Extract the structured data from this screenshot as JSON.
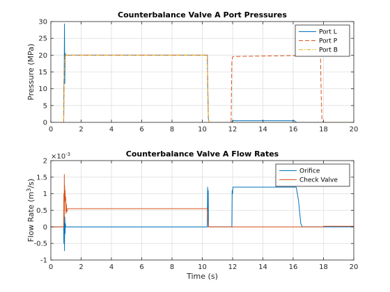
{
  "chart_data": [
    {
      "type": "line",
      "title": "Counterbalance Valve A Port Pressures",
      "xlabel": "",
      "ylabel": "Pressure (MPa)",
      "xlim": [
        0,
        20
      ],
      "ylim": [
        0,
        30
      ],
      "xticks": [
        "0",
        "2",
        "4",
        "6",
        "8",
        "10",
        "12",
        "14",
        "16",
        "18",
        "20"
      ],
      "yticks": [
        "0",
        "5",
        "10",
        "15",
        "20",
        "25",
        "30"
      ],
      "grid": true,
      "legend_position": "top-right",
      "series": [
        {
          "name": "Port L",
          "color": "#0072BD",
          "style": "solid",
          "x": [
            0,
            0.85,
            0.86,
            0.88,
            0.9,
            0.92,
            0.94,
            0.96,
            0.98,
            1.0,
            1.05,
            1.2,
            10.33,
            10.36,
            10.4,
            10.45,
            10.5,
            11.95,
            12.0,
            12.05,
            16.1,
            16.15,
            16.3,
            20
          ],
          "y": [
            0,
            0,
            11,
            14,
            29.3,
            11.5,
            20.5,
            19.8,
            20.3,
            20.0,
            20.0,
            20.0,
            20.0,
            10,
            1,
            0,
            0,
            0,
            0.5,
            0.5,
            0.5,
            0.1,
            0,
            0
          ]
        },
        {
          "name": "Port P",
          "color": "#D95319",
          "style": "dashed",
          "x": [
            0,
            0.85,
            0.88,
            0.92,
            0.96,
            1.0,
            1.05,
            10.33,
            10.36,
            10.4,
            10.45,
            11.9,
            11.95,
            12.0,
            12.1,
            17.8,
            17.85,
            17.9,
            18.0,
            20
          ],
          "y": [
            0,
            0,
            15,
            19.6,
            20.2,
            19.9,
            20.0,
            20.0,
            11,
            1,
            0,
            0,
            18,
            19.5,
            19.6,
            20.0,
            8,
            1,
            0,
            0
          ]
        },
        {
          "name": "Port B",
          "color": "#EDB120",
          "style": "dashdot",
          "x": [
            0,
            0.85,
            0.88,
            0.92,
            0.96,
            1.0,
            1.05,
            10.33,
            10.36,
            10.4,
            10.45,
            20
          ],
          "y": [
            0,
            0,
            15,
            19.6,
            20.2,
            19.9,
            20.0,
            20.0,
            11,
            1,
            0,
            0
          ]
        }
      ]
    },
    {
      "type": "line",
      "title": "Counterbalance Valve A Flow Rates",
      "xlabel": "Time (s)",
      "ylabel": "Flow Rate (m3/s)",
      "exponent_label": "×10",
      "exponent_power": "-3",
      "xlim": [
        0,
        20
      ],
      "ylim": [
        -1,
        2
      ],
      "xticks": [
        "0",
        "2",
        "4",
        "6",
        "8",
        "10",
        "12",
        "14",
        "16",
        "18",
        "20"
      ],
      "yticks": [
        "-1",
        "-0.5",
        "0",
        "0.5",
        "1",
        "1.5",
        "2"
      ],
      "grid": true,
      "legend_position": "top-right",
      "series": [
        {
          "name": "Orifice",
          "color": "#0072BD",
          "style": "solid",
          "x": [
            0,
            0.85,
            0.86,
            0.88,
            0.9,
            0.92,
            0.94,
            0.96,
            0.98,
            1.0,
            1.05,
            10.33,
            10.35,
            10.37,
            10.39,
            10.41,
            10.45,
            11.95,
            11.97,
            12.0,
            12.02,
            12.05,
            16.2,
            16.35,
            16.5,
            16.6,
            18.0,
            20
          ],
          "y": [
            0,
            0,
            -0.5,
            0.8,
            -0.72,
            0.3,
            -0.2,
            0.1,
            0,
            0,
            0,
            0,
            1.2,
            0.2,
            1.1,
            0,
            0,
            0,
            1.1,
            1.0,
            1.2,
            1.2,
            1.2,
            0.8,
            0.1,
            0,
            0,
            0
          ]
        },
        {
          "name": "Check Valve",
          "color": "#D95319",
          "style": "solid",
          "x": [
            0,
            0.85,
            0.86,
            0.88,
            0.89,
            0.9,
            0.91,
            0.92,
            0.94,
            0.96,
            0.98,
            1.0,
            1.02,
            1.05,
            1.1,
            10.33,
            10.36,
            10.4,
            18.0,
            18.02,
            18.05,
            20
          ],
          "y": [
            0,
            0,
            1.0,
            0.2,
            1.58,
            0.5,
            1.25,
            0.75,
            1.1,
            0.8,
            0.9,
            0.4,
            0.7,
            0.45,
            0.55,
            0.55,
            0.3,
            0,
            0,
            0.02,
            0.02,
            0.02
          ]
        }
      ]
    }
  ]
}
